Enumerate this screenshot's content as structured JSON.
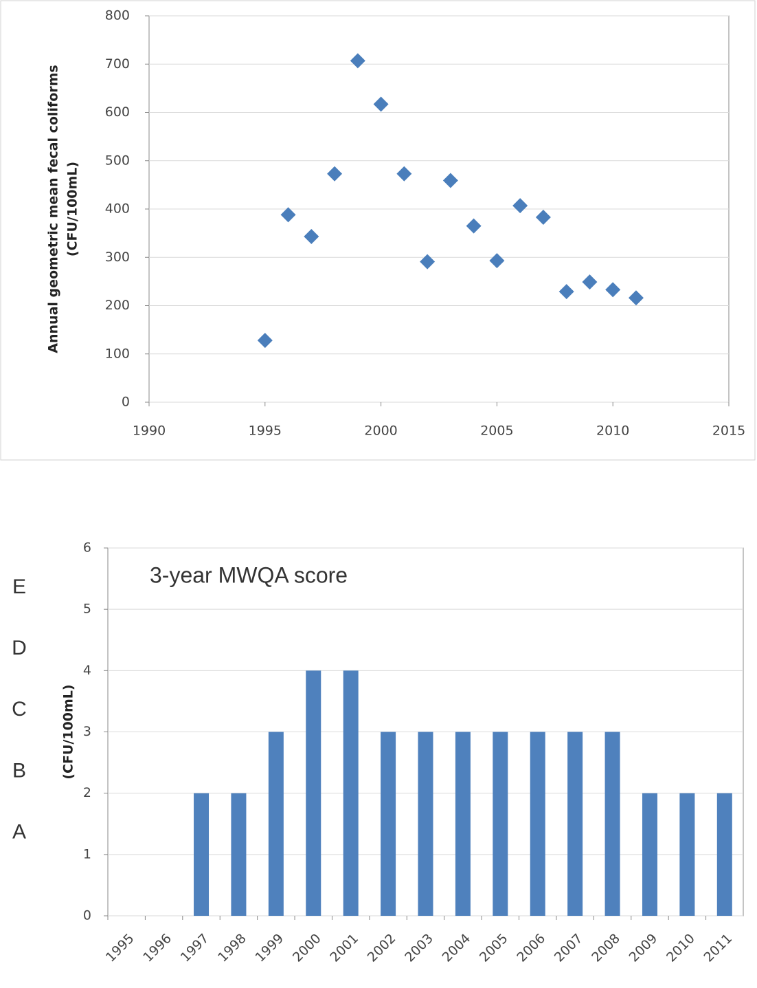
{
  "chart_data": [
    {
      "type": "scatter",
      "y_label": [
        "Annual geometric mean fecal coliforms",
        "(CFU/100mL)"
      ],
      "x": [
        1995,
        1996,
        1997,
        1998,
        1999,
        2000,
        2001,
        2002,
        2003,
        2004,
        2005,
        2006,
        2007,
        2008,
        2009,
        2010,
        2011
      ],
      "values": [
        128,
        388,
        343,
        473,
        707,
        617,
        473,
        291,
        459,
        365,
        293,
        407,
        383,
        229,
        249,
        233,
        216
      ],
      "color": "#4a7ebb",
      "xlim": [
        1990,
        2015
      ],
      "xticks": [
        1990,
        1995,
        2000,
        2005,
        2010,
        2015
      ],
      "ylim": [
        0,
        800
      ],
      "yticks": [
        0,
        100,
        200,
        300,
        400,
        500,
        600,
        700,
        800
      ],
      "grid": true
    },
    {
      "type": "bar",
      "annotation": "3-year MWQA score",
      "y_label": "(CFU/100mL)",
      "grade_labels": [
        "A",
        "B",
        "C",
        "D",
        "E"
      ],
      "categories": [
        "1995",
        "1996",
        "1997",
        "1998",
        "1999",
        "2000",
        "2001",
        "2002",
        "2003",
        "2004",
        "2005",
        "2006",
        "2007",
        "2008",
        "2009",
        "2010",
        "2011"
      ],
      "values": [
        0,
        0,
        2,
        2,
        3,
        4,
        4,
        3,
        3,
        3,
        3,
        3,
        3,
        3,
        2,
        2,
        2
      ],
      "color": "#4f81bd",
      "ylim": [
        0,
        6
      ],
      "yticks": [
        0,
        1,
        2,
        3,
        4,
        5,
        6
      ],
      "grid": true
    }
  ]
}
